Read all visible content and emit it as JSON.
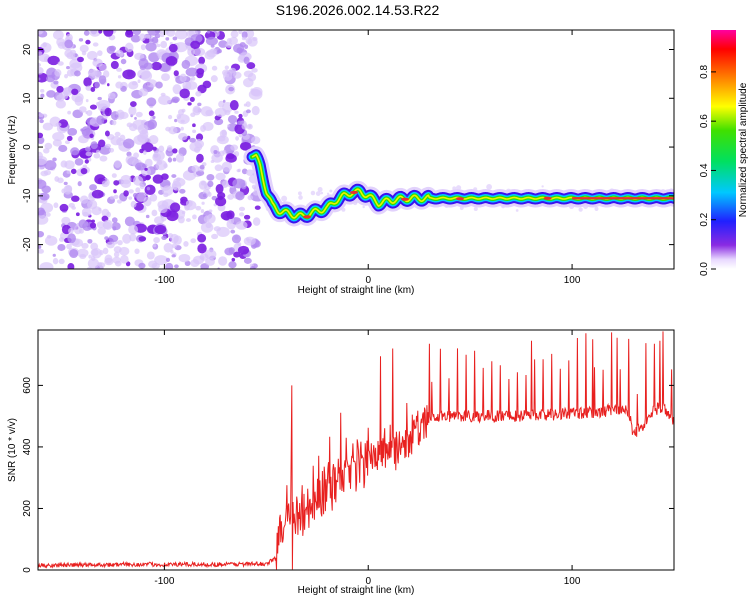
{
  "title": "S196.2026.002.14.53.R22",
  "colors": {
    "snr_line": "#e8201f",
    "noise_purple": "#7a1de0",
    "ridge_red": "#e83030"
  },
  "chart_data": [
    {
      "type": "heatmap",
      "title": "S196.2026.002.14.53.R22",
      "xlabel": "Height of straight line (km)",
      "ylabel": "Frequency (Hz)",
      "xlim": [
        -162,
        150
      ],
      "ylim": [
        -25,
        24
      ],
      "xticks": [
        -100,
        0,
        100
      ],
      "xtick_labels": [
        "-100",
        "0",
        "100"
      ],
      "yticks": [
        -20,
        -10,
        0,
        10,
        20
      ],
      "ytick_labels": [
        "-20",
        "-10",
        "0",
        "10",
        "20"
      ],
      "noise_region_x": [
        -162,
        -57
      ],
      "ridge": {
        "x": [
          -57,
          -55,
          -53,
          -50,
          -47,
          -44,
          -40,
          -36,
          -32,
          -28,
          -24,
          -20,
          -16,
          -12,
          -8,
          -4,
          0,
          5,
          10,
          20,
          40,
          60,
          80,
          100,
          120,
          150
        ],
        "y": [
          -1.5,
          -2,
          -4,
          -9,
          -12,
          -13,
          -13.5,
          -14,
          -14.2,
          -13.5,
          -13,
          -12.5,
          -11,
          -10,
          -9.3,
          -9.2,
          -10,
          -11.5,
          -11,
          -10.5,
          -10.5,
          -10.5,
          -10.5,
          -10.5,
          -10.5,
          -10.5
        ],
        "peak_amplitude": 0.95
      },
      "colorbar": {
        "label": "Normalized spectral amplitude",
        "range": [
          0,
          0.97
        ],
        "ticks": [
          0.0,
          0.2,
          0.4,
          0.6,
          0.8
        ],
        "tick_labels": [
          "0.0",
          "0.2",
          "0.4",
          "0.6",
          "0.8"
        ]
      }
    },
    {
      "type": "line",
      "xlabel": "Height of straight line (km)",
      "ylabel": "SNR (10 * v/v)",
      "xlim": [
        -162,
        150
      ],
      "ylim": [
        0,
        780
      ],
      "xticks": [
        -100,
        0,
        100
      ],
      "xtick_labels": [
        "-100",
        "0",
        "100"
      ],
      "yticks": [
        0,
        200,
        400,
        600
      ],
      "ytick_labels": [
        "0",
        "200",
        "400",
        "600"
      ],
      "series": [
        {
          "name": "SNR",
          "x": [
            -162,
            -120,
            -80,
            -50,
            -45,
            -42,
            -40,
            -38,
            -35,
            -30,
            -25,
            -20,
            -15,
            -10,
            -5,
            0,
            5,
            10,
            15,
            20,
            25,
            30,
            40,
            50,
            60,
            70,
            80,
            90,
            100,
            110,
            120,
            125,
            128,
            130,
            135,
            140,
            145,
            150
          ],
          "base": [
            15,
            18,
            18,
            20,
            40,
            160,
            230,
            200,
            150,
            190,
            230,
            270,
            300,
            330,
            350,
            360,
            370,
            390,
            400,
            420,
            460,
            490,
            500,
            500,
            500,
            500,
            505,
            505,
            510,
            510,
            520,
            525,
            505,
            440,
            470,
            520,
            530,
            480
          ],
          "spike_peaks": [
            {
              "x": -37.5,
              "y": 600
            },
            {
              "x": 6,
              "y": 695
            },
            {
              "x": 12,
              "y": 720
            },
            {
              "x": 30,
              "y": 735
            },
            {
              "x": 80,
              "y": 745
            },
            {
              "x": 110,
              "y": 750
            },
            {
              "x": 122,
              "y": 755
            },
            {
              "x": 143,
              "y": 745
            }
          ]
        }
      ]
    }
  ]
}
